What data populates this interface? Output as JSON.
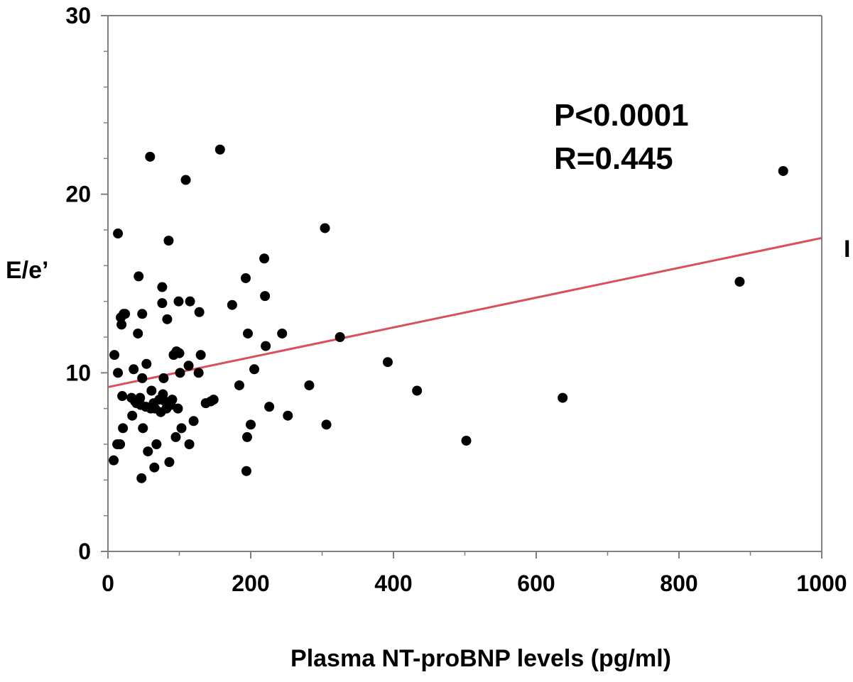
{
  "chart_data": {
    "type": "scatter",
    "xlabel": "Plasma NT-proBNP levels (pg/ml)",
    "ylabel": "E/e’",
    "xlim": [
      0,
      1000
    ],
    "ylim": [
      0,
      30
    ],
    "x_ticks": [
      0,
      200,
      400,
      600,
      800,
      1000
    ],
    "y_ticks": [
      0,
      10,
      20,
      30
    ],
    "x_ticks_minor": [
      100,
      300,
      500,
      700,
      900
    ],
    "y_ticks_minor": [
      2,
      4,
      6,
      8,
      12,
      14,
      16,
      18,
      22,
      24,
      26,
      28
    ],
    "annotations": [
      "P<0.0001",
      "R=0.445"
    ],
    "cut_label": "I",
    "grid": false,
    "colors": {
      "points": "#000000",
      "fit_line": "#d94f5c",
      "axes": "#808080"
    },
    "fit_line": {
      "x": [
        0,
        1000
      ],
      "y": [
        9.2,
        17.55
      ]
    },
    "points": [
      {
        "x": 8,
        "y": 5.1
      },
      {
        "x": 9,
        "y": 11.0
      },
      {
        "x": 13,
        "y": 6.0
      },
      {
        "x": 14,
        "y": 10.0
      },
      {
        "x": 14,
        "y": 17.8
      },
      {
        "x": 17,
        "y": 6.0
      },
      {
        "x": 18,
        "y": 13.1
      },
      {
        "x": 19,
        "y": 12.7
      },
      {
        "x": 20,
        "y": 8.7
      },
      {
        "x": 21,
        "y": 6.9
      },
      {
        "x": 22,
        "y": 13.3
      },
      {
        "x": 24,
        "y": 13.3
      },
      {
        "x": 33,
        "y": 8.6
      },
      {
        "x": 34,
        "y": 7.6
      },
      {
        "x": 36,
        "y": 10.2
      },
      {
        "x": 38,
        "y": 8.4
      },
      {
        "x": 40,
        "y": 8.3
      },
      {
        "x": 42,
        "y": 12.2
      },
      {
        "x": 43,
        "y": 15.4
      },
      {
        "x": 45,
        "y": 8.6
      },
      {
        "x": 46,
        "y": 8.2
      },
      {
        "x": 47,
        "y": 4.1
      },
      {
        "x": 48,
        "y": 9.7
      },
      {
        "x": 48,
        "y": 13.3
      },
      {
        "x": 49,
        "y": 6.9
      },
      {
        "x": 53,
        "y": 8.1
      },
      {
        "x": 54,
        "y": 10.5
      },
      {
        "x": 56,
        "y": 5.6
      },
      {
        "x": 59,
        "y": 22.1
      },
      {
        "x": 60,
        "y": 8.0
      },
      {
        "x": 61,
        "y": 9.0
      },
      {
        "x": 64,
        "y": 8.3
      },
      {
        "x": 65,
        "y": 4.7
      },
      {
        "x": 66,
        "y": 8.0
      },
      {
        "x": 68,
        "y": 6.0
      },
      {
        "x": 72,
        "y": 8.5
      },
      {
        "x": 74,
        "y": 7.8
      },
      {
        "x": 76,
        "y": 14.8
      },
      {
        "x": 76,
        "y": 13.9
      },
      {
        "x": 77,
        "y": 8.8
      },
      {
        "x": 78,
        "y": 9.7
      },
      {
        "x": 80,
        "y": 8.4
      },
      {
        "x": 82,
        "y": 8.0
      },
      {
        "x": 83,
        "y": 13.0
      },
      {
        "x": 85,
        "y": 17.4
      },
      {
        "x": 86,
        "y": 5.0
      },
      {
        "x": 88,
        "y": 8.2
      },
      {
        "x": 90,
        "y": 8.5
      },
      {
        "x": 92,
        "y": 11.0
      },
      {
        "x": 95,
        "y": 6.4
      },
      {
        "x": 96,
        "y": 11.2
      },
      {
        "x": 98,
        "y": 8.0
      },
      {
        "x": 99,
        "y": 14.0
      },
      {
        "x": 100,
        "y": 11.1
      },
      {
        "x": 101,
        "y": 10.0
      },
      {
        "x": 103,
        "y": 6.9
      },
      {
        "x": 109,
        "y": 20.8
      },
      {
        "x": 113,
        "y": 10.4
      },
      {
        "x": 114,
        "y": 6.0
      },
      {
        "x": 115,
        "y": 14.0
      },
      {
        "x": 120,
        "y": 7.3
      },
      {
        "x": 127,
        "y": 10.0
      },
      {
        "x": 128,
        "y": 13.4
      },
      {
        "x": 130,
        "y": 11.0
      },
      {
        "x": 137,
        "y": 8.3
      },
      {
        "x": 144,
        "y": 8.4
      },
      {
        "x": 148,
        "y": 8.5
      },
      {
        "x": 157,
        "y": 22.5
      },
      {
        "x": 174,
        "y": 13.8
      },
      {
        "x": 184,
        "y": 9.3
      },
      {
        "x": 193,
        "y": 15.3
      },
      {
        "x": 194,
        "y": 4.5
      },
      {
        "x": 195,
        "y": 6.4
      },
      {
        "x": 196,
        "y": 12.2
      },
      {
        "x": 200,
        "y": 7.1
      },
      {
        "x": 205,
        "y": 10.2
      },
      {
        "x": 219,
        "y": 16.4
      },
      {
        "x": 220,
        "y": 14.3
      },
      {
        "x": 221,
        "y": 11.5
      },
      {
        "x": 226,
        "y": 8.1
      },
      {
        "x": 244,
        "y": 12.2
      },
      {
        "x": 252,
        "y": 7.6
      },
      {
        "x": 282,
        "y": 9.3
      },
      {
        "x": 304,
        "y": 18.1
      },
      {
        "x": 306,
        "y": 7.1
      },
      {
        "x": 325,
        "y": 12.0
      },
      {
        "x": 392,
        "y": 10.6
      },
      {
        "x": 433,
        "y": 9.0
      },
      {
        "x": 502,
        "y": 6.2
      },
      {
        "x": 637,
        "y": 8.6
      },
      {
        "x": 885,
        "y": 15.1
      },
      {
        "x": 946,
        "y": 21.3
      }
    ]
  }
}
